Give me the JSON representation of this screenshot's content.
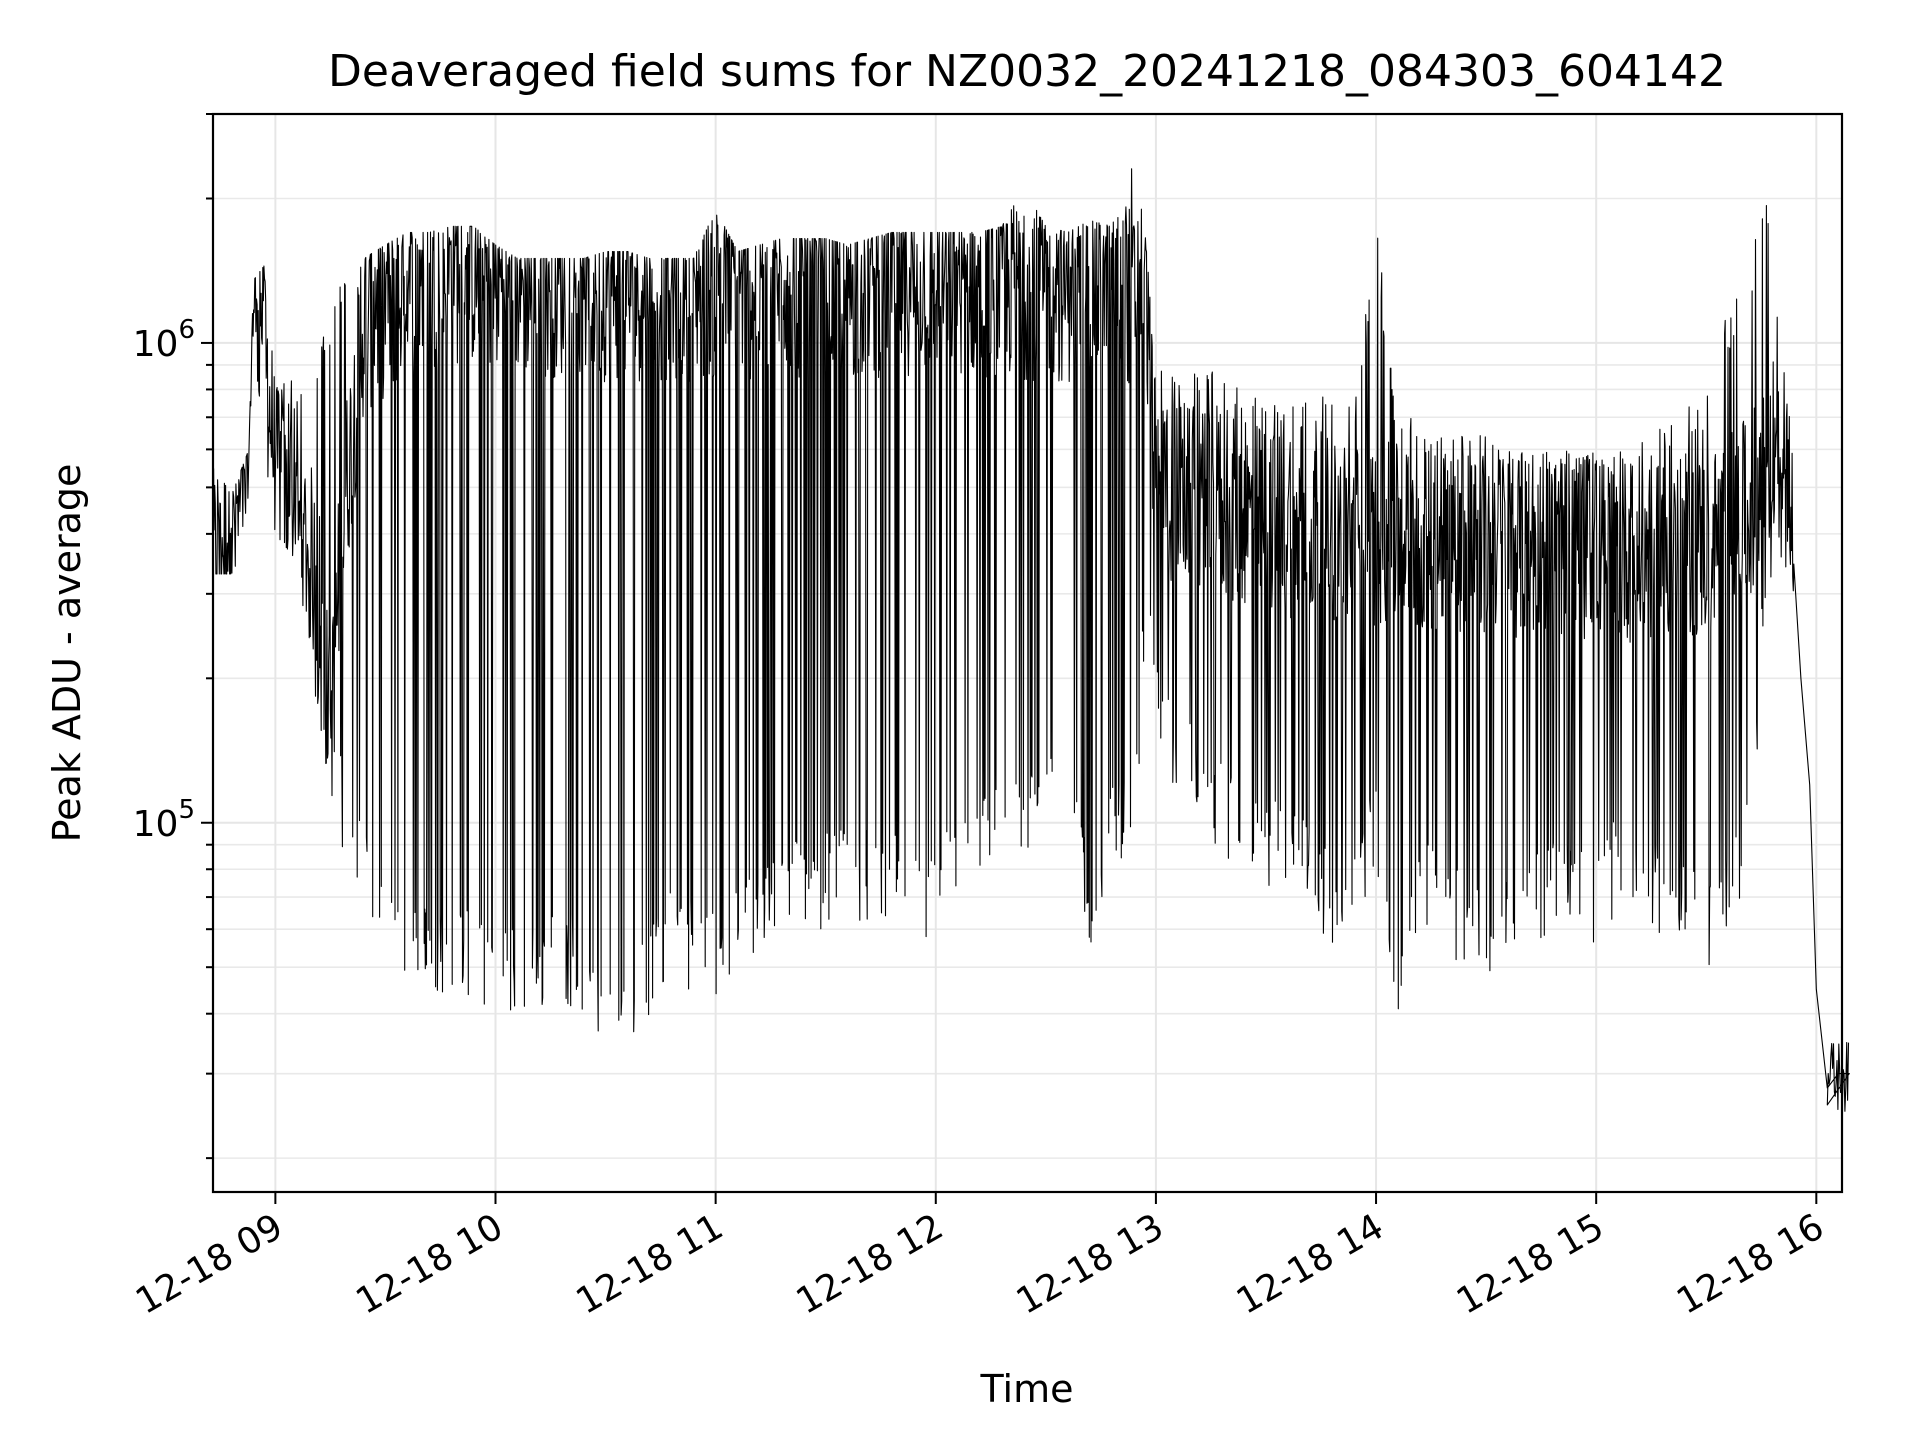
{
  "chart_data": {
    "type": "line",
    "title": "Deaveraged field sums for NZ0032_20241218_084303_604142",
    "xlabel": "Time",
    "ylabel": "Peak ADU - average",
    "yscale": "log",
    "xlim": [
      "12-18 08:43",
      "12-18 16:07"
    ],
    "ylim": [
      17000,
      3000000
    ],
    "x_ticks": [
      "12-18 09",
      "12-18 10",
      "12-18 11",
      "12-18 12",
      "12-18 13",
      "12-18 14",
      "12-18 15",
      "12-18 16"
    ],
    "x_tick_hours": [
      9,
      10,
      11,
      12,
      13,
      14,
      15,
      16
    ],
    "y_ticks": [
      {
        "value": 100000,
        "base": "10",
        "exp": "5"
      },
      {
        "value": 1000000,
        "base": "10",
        "exp": "6"
      }
    ],
    "grid": true,
    "line_color": "#000000",
    "series": [
      {
        "color": "#000000",
        "points": [
          [
            8.72,
            350000
          ],
          [
            8.75,
            330000
          ],
          [
            8.78,
            420000
          ],
          [
            8.81,
            400000
          ],
          [
            8.84,
            450000
          ],
          [
            8.87,
            520000
          ],
          [
            8.89,
            1100000
          ],
          [
            8.92,
            1300000
          ],
          [
            8.94,
            1200000
          ],
          [
            8.96,
            800000
          ],
          [
            9.0,
            600000
          ],
          [
            9.05,
            450000
          ],
          [
            9.1,
            400000
          ],
          [
            9.15,
            380000
          ],
          [
            9.2,
            300000
          ],
          [
            9.25,
            150000
          ],
          [
            9.3,
            400000
          ],
          [
            9.4,
            1100000
          ],
          [
            9.5,
            1200000
          ],
          [
            9.6,
            1300000
          ],
          [
            9.7,
            1350000
          ],
          [
            9.8,
            1400000
          ],
          [
            9.9,
            1400000
          ],
          [
            10.0,
            1350000
          ],
          [
            10.5,
            1300000
          ],
          [
            11.0,
            1300000
          ],
          [
            11.5,
            1300000
          ],
          [
            12.0,
            1350000
          ],
          [
            12.5,
            1300000
          ],
          [
            12.9,
            1250000
          ],
          [
            12.95,
            1500000
          ],
          [
            13.0,
            500000
          ],
          [
            13.3,
            450000
          ],
          [
            13.6,
            420000
          ],
          [
            13.9,
            400000
          ],
          [
            14.0,
            400000
          ],
          [
            14.3,
            380000
          ],
          [
            14.6,
            380000
          ],
          [
            14.9,
            380000
          ],
          [
            15.2,
            370000
          ],
          [
            15.5,
            380000
          ],
          [
            15.7,
            450000
          ],
          [
            15.8,
            600000
          ],
          [
            15.85,
            550000
          ],
          [
            15.9,
            400000
          ],
          [
            15.93,
            200000
          ],
          [
            15.97,
            120000
          ],
          [
            16.0,
            45000
          ],
          [
            16.05,
            28000
          ],
          [
            16.1,
            30000
          ],
          [
            16.15,
            30000
          ]
        ],
        "envelope": [
          [
            8.72,
            330000,
            560000
          ],
          [
            8.8,
            330000,
            480000
          ],
          [
            8.88,
            380000,
            600000
          ],
          [
            8.9,
            900000,
            1350000
          ],
          [
            8.95,
            600000,
            1450000
          ],
          [
            9.0,
            400000,
            800000
          ],
          [
            9.1,
            350000,
            900000
          ],
          [
            9.2,
            150000,
            1000000
          ],
          [
            9.3,
            90000,
            1500000
          ],
          [
            9.4,
            65000,
            1500000
          ],
          [
            9.5,
            50000,
            1600000
          ],
          [
            9.6,
            45000,
            1700000
          ],
          [
            9.7,
            42000,
            1700000
          ],
          [
            9.8,
            45000,
            1750000
          ],
          [
            9.9,
            42000,
            1750000
          ],
          [
            10.0,
            40000,
            1600000
          ],
          [
            10.1,
            38000,
            1500000
          ],
          [
            10.2,
            40000,
            1500000
          ],
          [
            10.3,
            42000,
            1500000
          ],
          [
            10.4,
            40000,
            1500000
          ],
          [
            10.5,
            30000,
            1550000
          ],
          [
            10.6,
            35000,
            1550000
          ],
          [
            10.7,
            40000,
            1500000
          ],
          [
            10.8,
            45000,
            1500000
          ],
          [
            10.9,
            45000,
            1500000
          ],
          [
            11.0,
            40000,
            1900000
          ],
          [
            11.1,
            50000,
            1550000
          ],
          [
            11.2,
            50000,
            1600000
          ],
          [
            11.3,
            60000,
            1650000
          ],
          [
            11.4,
            60000,
            1650000
          ],
          [
            11.5,
            60000,
            1650000
          ],
          [
            11.6,
            65000,
            1600000
          ],
          [
            11.7,
            60000,
            1650000
          ],
          [
            11.8,
            60000,
            1700000
          ],
          [
            11.9,
            55000,
            1700000
          ],
          [
            12.0,
            55000,
            1700000
          ],
          [
            12.1,
            70000,
            1700000
          ],
          [
            12.2,
            70000,
            1700000
          ],
          [
            12.3,
            80000,
            1750000
          ],
          [
            12.4,
            85000,
            2100000
          ],
          [
            12.5,
            90000,
            1750000
          ],
          [
            12.6,
            85000,
            1700000
          ],
          [
            12.7,
            55000,
            1800000
          ],
          [
            12.8,
            75000,
            1750000
          ],
          [
            12.9,
            80000,
            2400000
          ],
          [
            12.95,
            200000,
            1700000
          ],
          [
            13.0,
            150000,
            900000
          ],
          [
            13.1,
            110000,
            850000
          ],
          [
            13.2,
            95000,
            900000
          ],
          [
            13.3,
            85000,
            850000
          ],
          [
            13.4,
            75000,
            800000
          ],
          [
            13.5,
            70000,
            780000
          ],
          [
            13.6,
            70000,
            750000
          ],
          [
            13.7,
            65000,
            760000
          ],
          [
            13.8,
            55000,
            780000
          ],
          [
            13.9,
            60000,
            760000
          ],
          [
            14.0,
            75000,
            1800000
          ],
          [
            14.1,
            38000,
            700000
          ],
          [
            14.2,
            60000,
            720000
          ],
          [
            14.3,
            55000,
            680000
          ],
          [
            14.4,
            50000,
            650000
          ],
          [
            14.5,
            45000,
            640000
          ],
          [
            14.6,
            55000,
            620000
          ],
          [
            14.7,
            55000,
            620000
          ],
          [
            14.8,
            60000,
            620000
          ],
          [
            14.9,
            55000,
            640000
          ],
          [
            15.0,
            55000,
            640000
          ],
          [
            15.1,
            65000,
            620000
          ],
          [
            15.2,
            60000,
            650000
          ],
          [
            15.3,
            55000,
            700000
          ],
          [
            15.4,
            55000,
            750000
          ],
          [
            15.5,
            45000,
            800000
          ],
          [
            15.6,
            60000,
            1200000
          ],
          [
            15.7,
            80000,
            1400000
          ],
          [
            15.75,
            200000,
            2100000
          ],
          [
            15.8,
            300000,
            2000000
          ],
          [
            15.85,
            350000,
            900000
          ],
          [
            15.9,
            300000,
            600000
          ]
        ]
      }
    ]
  }
}
